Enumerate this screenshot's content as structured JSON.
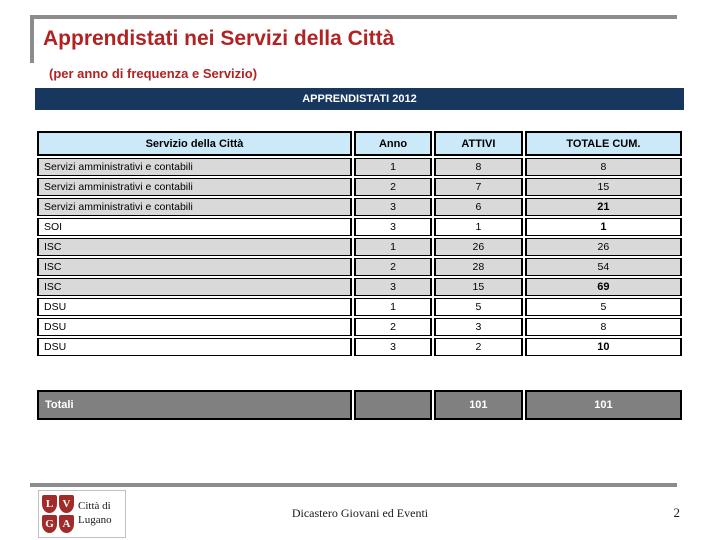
{
  "slide": {
    "title": "Apprendistati nei Servizi della Città",
    "subtitle": "(per anno di frequenza e Servizio)",
    "banner": "APPRENDISTATI 2012",
    "footer_center": "Dicastero Giovani ed Eventi",
    "page_number": "2",
    "logo": {
      "letters": [
        "L",
        "V",
        "G",
        "A"
      ],
      "text_line1": "Città di",
      "text_line2": "Lugano"
    }
  },
  "table": {
    "headers": [
      "Servizio della Città",
      "Anno",
      "ATTIVI",
      "TOTALE CUM."
    ],
    "rows": [
      {
        "servizio": "Servizi amministrativi e contabili",
        "anno": "1",
        "attivi": "8",
        "totale": "8",
        "shaded": true,
        "totale_bold": false
      },
      {
        "servizio": "Servizi amministrativi e contabili",
        "anno": "2",
        "attivi": "7",
        "totale": "15",
        "shaded": true,
        "totale_bold": false
      },
      {
        "servizio": "Servizi amministrativi e contabili",
        "anno": "3",
        "attivi": "6",
        "totale": "21",
        "shaded": true,
        "totale_bold": true
      },
      {
        "servizio": "SOI",
        "anno": "3",
        "attivi": "1",
        "totale": "1",
        "shaded": false,
        "totale_bold": true
      },
      {
        "servizio": "ISC",
        "anno": "1",
        "attivi": "26",
        "totale": "26",
        "shaded": true,
        "totale_bold": false
      },
      {
        "servizio": "ISC",
        "anno": "2",
        "attivi": "28",
        "totale": "54",
        "shaded": true,
        "totale_bold": false
      },
      {
        "servizio": "ISC",
        "anno": "3",
        "attivi": "15",
        "totale": "69",
        "shaded": true,
        "totale_bold": true
      },
      {
        "servizio": "DSU",
        "anno": "1",
        "attivi": "5",
        "totale": "5",
        "shaded": false,
        "totale_bold": false
      },
      {
        "servizio": "DSU",
        "anno": "2",
        "attivi": "3",
        "totale": "8",
        "shaded": false,
        "totale_bold": false
      },
      {
        "servizio": "DSU",
        "anno": "3",
        "attivi": "2",
        "totale": "10",
        "shaded": false,
        "totale_bold": true
      }
    ],
    "totals": {
      "label": "Totali",
      "anno": "",
      "attivi": "101",
      "totale": "101"
    }
  },
  "colors": {
    "title_red": "#B22222",
    "banner_navy": "#17375E",
    "header_blue": "#CBE9F8",
    "row_gray": "#D9D9D9",
    "totals_gray": "#808080",
    "rule_gray": "#8C8C8C",
    "logo_red": "#A02B28"
  }
}
